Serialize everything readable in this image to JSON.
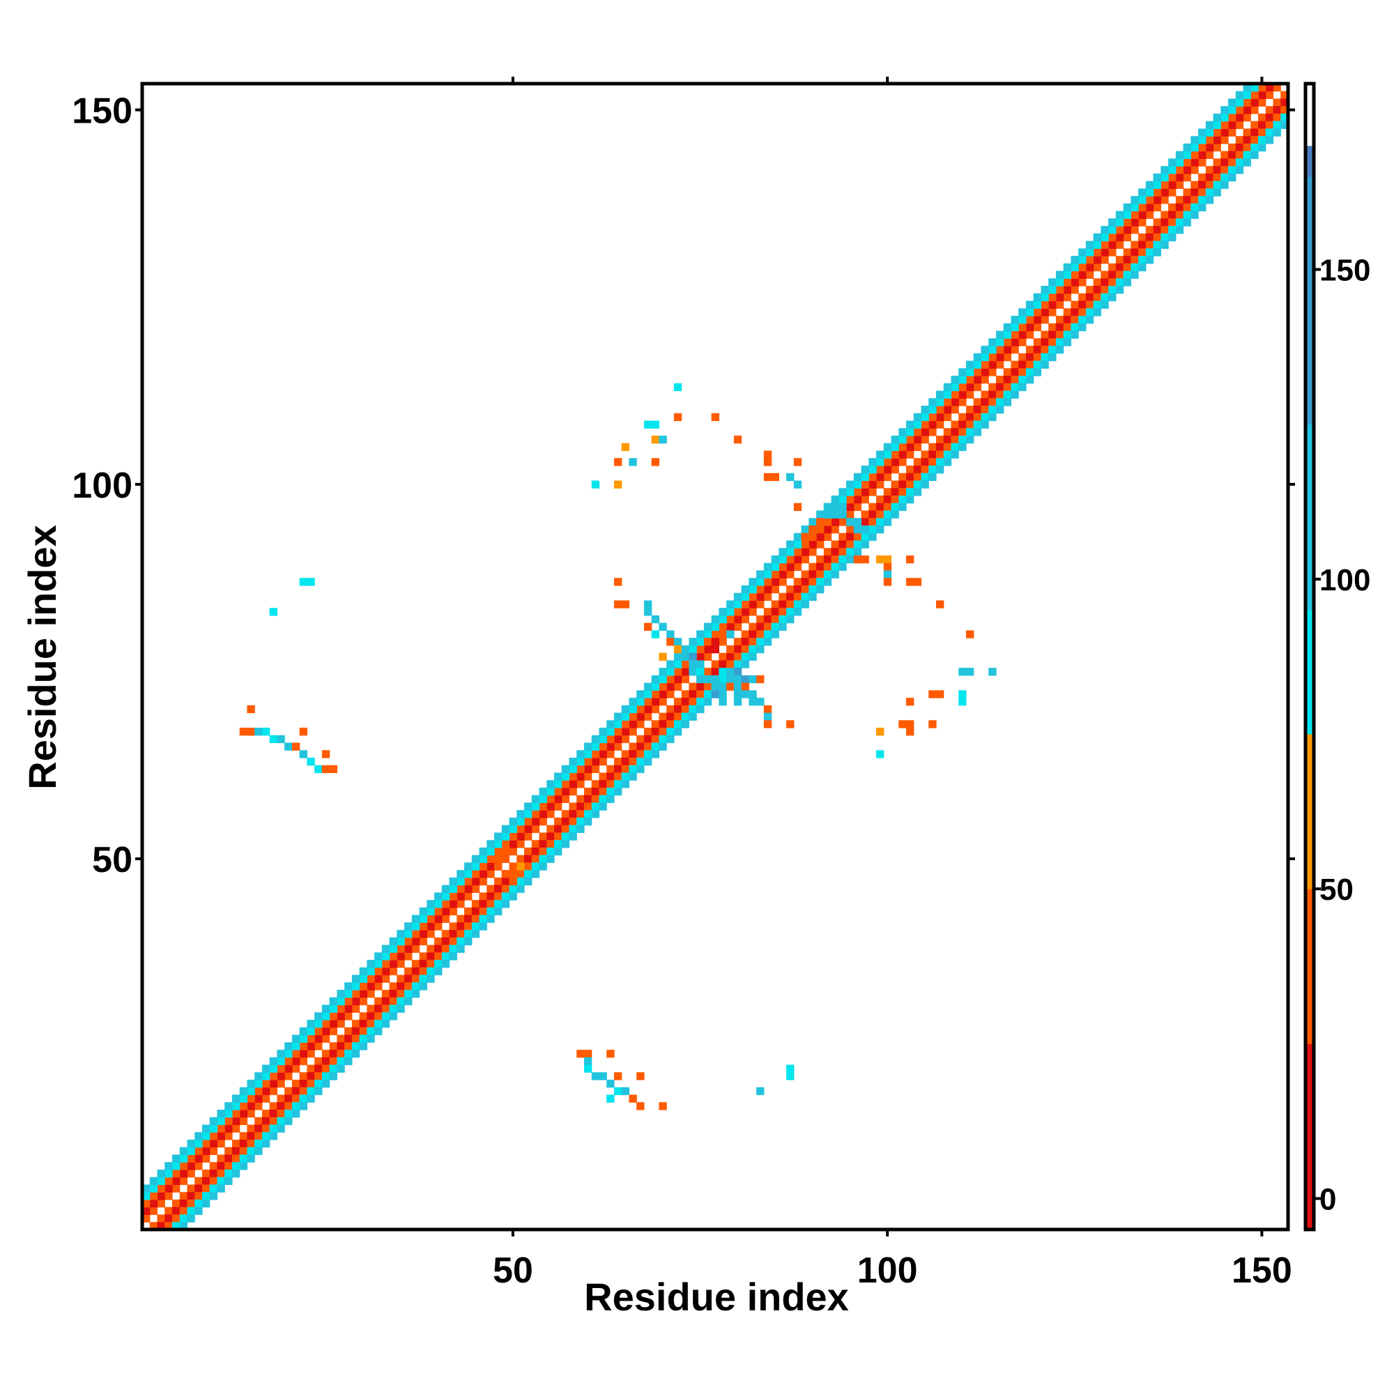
{
  "chart_data": {
    "type": "heatmap",
    "title": "",
    "xlabel": "Residue index",
    "ylabel": "Residue index",
    "xlim": [
      0.5,
      153.5
    ],
    "ylim": [
      0.5,
      153.5
    ],
    "x_ticks": [
      50,
      100,
      150
    ],
    "y_ticks": [
      50,
      100,
      150
    ],
    "colorbar": {
      "range": [
        -5,
        180
      ],
      "ticks": [
        0,
        50,
        100,
        150
      ],
      "stops": [
        {
          "from": -5,
          "to": 25,
          "color": "#e01010"
        },
        {
          "from": 25,
          "to": 50,
          "color": "#ff5a00"
        },
        {
          "from": 50,
          "to": 75,
          "color": "#ff9900"
        },
        {
          "from": 75,
          "to": 95,
          "color": "#00e5ee"
        },
        {
          "from": 95,
          "to": 125,
          "color": "#22c4dd"
        },
        {
          "from": 125,
          "to": 165,
          "color": "#3a9dd0"
        },
        {
          "from": 165,
          "to": 170,
          "color": "#4c7fbf"
        },
        {
          "from": 170,
          "to": 180,
          "color": "#ffffff"
        }
      ]
    },
    "diagonal_bands": [
      {
        "offset": 0,
        "value": 180
      },
      {
        "offset": 1,
        "value": 45
      },
      {
        "offset": 2,
        "value": 10
      },
      {
        "offset": 3,
        "value": 35
      },
      {
        "offset": 4,
        "value": 90
      },
      {
        "offset": 5,
        "value": 110
      }
    ],
    "off_diagonal_cells": [
      {
        "x": 14,
        "y": 67,
        "v": 45
      },
      {
        "x": 15,
        "y": 67,
        "v": 45
      },
      {
        "x": 16,
        "y": 67,
        "v": 100
      },
      {
        "x": 17,
        "y": 67,
        "v": 85
      },
      {
        "x": 18,
        "y": 66,
        "v": 85
      },
      {
        "x": 19,
        "y": 66,
        "v": 100
      },
      {
        "x": 20,
        "y": 65,
        "v": 100
      },
      {
        "x": 21,
        "y": 65,
        "v": 45
      },
      {
        "x": 22,
        "y": 64,
        "v": 100
      },
      {
        "x": 23,
        "y": 63,
        "v": 85
      },
      {
        "x": 24,
        "y": 62,
        "v": 85
      },
      {
        "x": 25,
        "y": 62,
        "v": 45
      },
      {
        "x": 26,
        "y": 62,
        "v": 30
      },
      {
        "x": 22,
        "y": 67,
        "v": 45
      },
      {
        "x": 25,
        "y": 64,
        "v": 45
      },
      {
        "x": 15,
        "y": 70,
        "v": 45
      },
      {
        "x": 18,
        "y": 83,
        "v": 85
      },
      {
        "x": 22,
        "y": 87,
        "v": 85
      },
      {
        "x": 23,
        "y": 87,
        "v": 85
      },
      {
        "x": 59,
        "y": 24,
        "v": 45
      },
      {
        "x": 60,
        "y": 24,
        "v": 45
      },
      {
        "x": 60,
        "y": 23,
        "v": 100
      },
      {
        "x": 60,
        "y": 22,
        "v": 85
      },
      {
        "x": 61,
        "y": 21,
        "v": 100
      },
      {
        "x": 62,
        "y": 21,
        "v": 100
      },
      {
        "x": 63,
        "y": 20,
        "v": 100
      },
      {
        "x": 64,
        "y": 19,
        "v": 85
      },
      {
        "x": 63,
        "y": 24,
        "v": 45
      },
      {
        "x": 64,
        "y": 21,
        "v": 45
      },
      {
        "x": 65,
        "y": 19,
        "v": 100
      },
      {
        "x": 66,
        "y": 18,
        "v": 45
      },
      {
        "x": 67,
        "y": 17,
        "v": 45
      },
      {
        "x": 67,
        "y": 21,
        "v": 45
      },
      {
        "x": 70,
        "y": 17,
        "v": 30
      },
      {
        "x": 63,
        "y": 18,
        "v": 85
      },
      {
        "x": 83,
        "y": 19,
        "v": 100
      },
      {
        "x": 87,
        "y": 21,
        "v": 85
      },
      {
        "x": 87,
        "y": 22,
        "v": 85
      },
      {
        "x": 72,
        "y": 113,
        "v": 85
      },
      {
        "x": 68,
        "y": 108,
        "v": 85
      },
      {
        "x": 69,
        "y": 108,
        "v": 85
      },
      {
        "x": 72,
        "y": 109,
        "v": 45
      },
      {
        "x": 77,
        "y": 109,
        "v": 45
      },
      {
        "x": 69,
        "y": 106,
        "v": 60
      },
      {
        "x": 70,
        "y": 106,
        "v": 100
      },
      {
        "x": 65,
        "y": 105,
        "v": 60
      },
      {
        "x": 80,
        "y": 106,
        "v": 45
      },
      {
        "x": 64,
        "y": 103,
        "v": 45
      },
      {
        "x": 66,
        "y": 103,
        "v": 100
      },
      {
        "x": 69,
        "y": 103,
        "v": 45
      },
      {
        "x": 61,
        "y": 100,
        "v": 85
      },
      {
        "x": 64,
        "y": 100,
        "v": 60
      },
      {
        "x": 84,
        "y": 104,
        "v": 45
      },
      {
        "x": 84,
        "y": 103,
        "v": 45
      },
      {
        "x": 88,
        "y": 103,
        "v": 45
      },
      {
        "x": 84,
        "y": 101,
        "v": 45
      },
      {
        "x": 85,
        "y": 101,
        "v": 45
      },
      {
        "x": 87,
        "y": 101,
        "v": 100
      },
      {
        "x": 88,
        "y": 100,
        "v": 100
      },
      {
        "x": 88,
        "y": 97,
        "v": 45
      },
      {
        "x": 96,
        "y": 90,
        "v": 45
      },
      {
        "x": 97,
        "y": 90,
        "v": 45
      },
      {
        "x": 99,
        "y": 90,
        "v": 60
      },
      {
        "x": 100,
        "y": 90,
        "v": 60
      },
      {
        "x": 103,
        "y": 90,
        "v": 45
      },
      {
        "x": 100,
        "y": 89,
        "v": 45
      },
      {
        "x": 100,
        "y": 88,
        "v": 100
      },
      {
        "x": 100,
        "y": 87,
        "v": 45
      },
      {
        "x": 103,
        "y": 87,
        "v": 45
      },
      {
        "x": 104,
        "y": 87,
        "v": 45
      },
      {
        "x": 107,
        "y": 84,
        "v": 45
      },
      {
        "x": 111,
        "y": 80,
        "v": 45
      },
      {
        "x": 110,
        "y": 75,
        "v": 100
      },
      {
        "x": 111,
        "y": 75,
        "v": 100
      },
      {
        "x": 114,
        "y": 75,
        "v": 100
      },
      {
        "x": 106,
        "y": 72,
        "v": 45
      },
      {
        "x": 107,
        "y": 72,
        "v": 45
      },
      {
        "x": 110,
        "y": 72,
        "v": 85
      },
      {
        "x": 103,
        "y": 71,
        "v": 45
      },
      {
        "x": 110,
        "y": 71,
        "v": 85
      },
      {
        "x": 102,
        "y": 68,
        "v": 45
      },
      {
        "x": 103,
        "y": 68,
        "v": 45
      },
      {
        "x": 106,
        "y": 68,
        "v": 45
      },
      {
        "x": 99,
        "y": 67,
        "v": 60
      },
      {
        "x": 103,
        "y": 67,
        "v": 45
      },
      {
        "x": 99,
        "y": 64,
        "v": 85
      },
      {
        "x": 64,
        "y": 87,
        "v": 45
      },
      {
        "x": 64,
        "y": 84,
        "v": 45
      },
      {
        "x": 65,
        "y": 84,
        "v": 45
      },
      {
        "x": 68,
        "y": 84,
        "v": 100
      },
      {
        "x": 68,
        "y": 83,
        "v": 100
      },
      {
        "x": 69,
        "y": 82,
        "v": 100
      },
      {
        "x": 68,
        "y": 81,
        "v": 45
      },
      {
        "x": 69,
        "y": 80,
        "v": 85
      },
      {
        "x": 70,
        "y": 81,
        "v": 100
      },
      {
        "x": 71,
        "y": 80,
        "v": 100
      },
      {
        "x": 71,
        "y": 79,
        "v": 45
      },
      {
        "x": 72,
        "y": 79,
        "v": 100
      },
      {
        "x": 72,
        "y": 78,
        "v": 60
      },
      {
        "x": 73,
        "y": 78,
        "v": 100
      },
      {
        "x": 70,
        "y": 77,
        "v": 60
      },
      {
        "x": 73,
        "y": 77,
        "v": 100
      },
      {
        "x": 74,
        "y": 77,
        "v": 130
      },
      {
        "x": 74,
        "y": 76,
        "v": 100
      },
      {
        "x": 75,
        "y": 76,
        "v": 100
      },
      {
        "x": 74,
        "y": 75,
        "v": 110
      },
      {
        "x": 75,
        "y": 75,
        "v": 90
      },
      {
        "x": 75,
        "y": 74,
        "v": 100
      },
      {
        "x": 76,
        "y": 74,
        "v": 110
      },
      {
        "x": 77,
        "y": 74,
        "v": 100
      },
      {
        "x": 78,
        "y": 75,
        "v": 85
      },
      {
        "x": 79,
        "y": 75,
        "v": 110
      },
      {
        "x": 80,
        "y": 75,
        "v": 140
      },
      {
        "x": 80,
        "y": 74,
        "v": 100
      },
      {
        "x": 81,
        "y": 74,
        "v": 140
      },
      {
        "x": 82,
        "y": 74,
        "v": 100
      },
      {
        "x": 83,
        "y": 74,
        "v": 45
      },
      {
        "x": 77,
        "y": 73,
        "v": 120
      },
      {
        "x": 78,
        "y": 73,
        "v": 100
      },
      {
        "x": 79,
        "y": 73,
        "v": 45
      },
      {
        "x": 80,
        "y": 73,
        "v": 100
      },
      {
        "x": 81,
        "y": 73,
        "v": 45
      },
      {
        "x": 77,
        "y": 72,
        "v": 140
      },
      {
        "x": 78,
        "y": 72,
        "v": 100
      },
      {
        "x": 80,
        "y": 72,
        "v": 110
      },
      {
        "x": 81,
        "y": 72,
        "v": 100
      },
      {
        "x": 82,
        "y": 72,
        "v": 100
      },
      {
        "x": 78,
        "y": 71,
        "v": 110
      },
      {
        "x": 80,
        "y": 71,
        "v": 100
      },
      {
        "x": 82,
        "y": 71,
        "v": 100
      },
      {
        "x": 83,
        "y": 71,
        "v": 100
      },
      {
        "x": 84,
        "y": 70,
        "v": 45
      },
      {
        "x": 84,
        "y": 69,
        "v": 100
      },
      {
        "x": 84,
        "y": 68,
        "v": 45
      },
      {
        "x": 87,
        "y": 68,
        "v": 45
      },
      {
        "x": 76,
        "y": 79,
        "v": 45
      },
      {
        "x": 77,
        "y": 79,
        "v": 10
      },
      {
        "x": 77,
        "y": 78,
        "v": 10
      },
      {
        "x": 79,
        "y": 78,
        "v": 45
      },
      {
        "x": 78,
        "y": 80,
        "v": 45
      },
      {
        "x": 79,
        "y": 80,
        "v": 100
      },
      {
        "x": 92,
        "y": 97,
        "v": 100
      },
      {
        "x": 93,
        "y": 97,
        "v": 100
      },
      {
        "x": 94,
        "y": 97,
        "v": 100
      },
      {
        "x": 92,
        "y": 96,
        "v": 100
      },
      {
        "x": 93,
        "y": 96,
        "v": 110
      },
      {
        "x": 94,
        "y": 96,
        "v": 100
      },
      {
        "x": 95,
        "y": 95,
        "v": 100
      },
      {
        "x": 96,
        "y": 95,
        "v": 100
      },
      {
        "x": 96,
        "y": 94,
        "v": 110
      },
      {
        "x": 97,
        "y": 94,
        "v": 100
      },
      {
        "x": 91,
        "y": 95,
        "v": 45
      },
      {
        "x": 90,
        "y": 94,
        "v": 45
      },
      {
        "x": 89,
        "y": 93,
        "v": 45
      },
      {
        "x": 48,
        "y": 49,
        "v": 45
      },
      {
        "x": 48,
        "y": 50,
        "v": 45
      },
      {
        "x": 49,
        "y": 48,
        "v": 45
      },
      {
        "x": 50,
        "y": 48,
        "v": 45
      },
      {
        "x": 50,
        "y": 47,
        "v": 45
      },
      {
        "x": 49,
        "y": 51,
        "v": 30
      },
      {
        "x": 51,
        "y": 49,
        "v": 60
      }
    ]
  }
}
